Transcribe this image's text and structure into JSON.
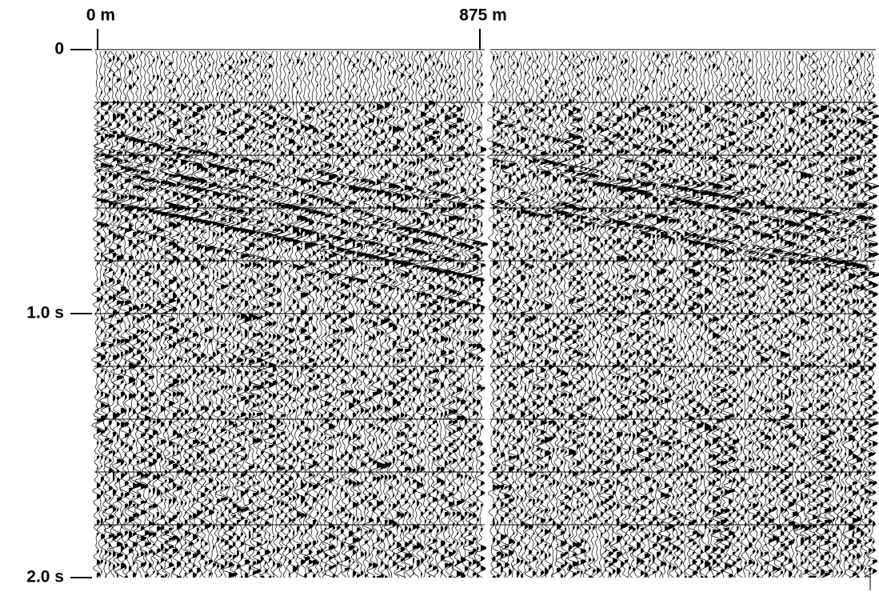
{
  "chart_data": {
    "type": "seismic",
    "xlim": [
      0,
      875
    ],
    "xticks": [
      {
        "value": 0,
        "label": "0 m"
      },
      {
        "value": 875,
        "label": "875 m"
      }
    ],
    "ylim": [
      0,
      2.0
    ],
    "yticks": [
      {
        "value": 0,
        "label": "0"
      },
      {
        "value": 1.0,
        "label": "1.0 s"
      },
      {
        "value": 2.0,
        "label": "2.0 s"
      }
    ],
    "y_gridlines": [
      0.2,
      0.4,
      0.6,
      0.8,
      1.0,
      1.2,
      1.4,
      1.6,
      1.8
    ],
    "grid": true,
    "color": "#000000"
  }
}
